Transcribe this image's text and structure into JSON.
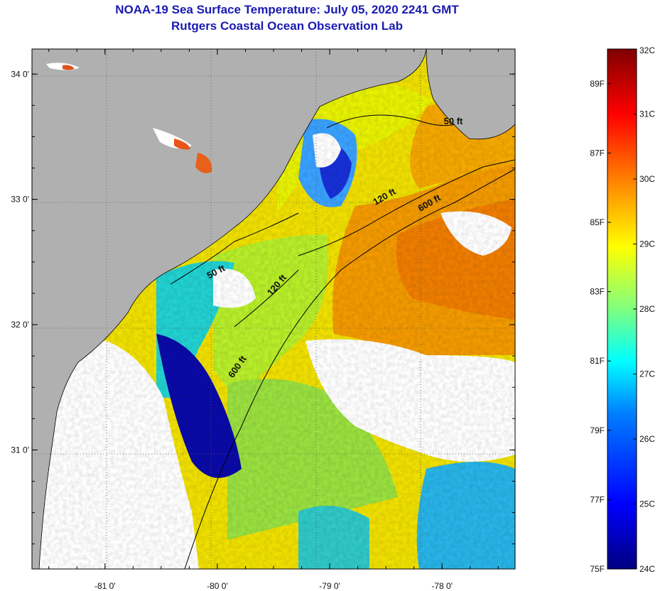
{
  "title": "NOAA-19 Sea Surface Temperature:  July 05, 2020 2241 GMT",
  "subtitle": "Rutgers Coastal Ocean Observation Lab",
  "map": {
    "lon_range": [
      -81.65,
      -77.35
    ],
    "lat_range": [
      30.05,
      34.2
    ],
    "lon_ticks": [
      {
        "value": -81,
        "label": "-81 0'"
      },
      {
        "value": -80,
        "label": "-80 0'"
      },
      {
        "value": -79,
        "label": "-79 0'"
      },
      {
        "value": -78,
        "label": "-78 0'"
      }
    ],
    "lat_ticks": [
      {
        "value": 34,
        "label": "34 0'"
      },
      {
        "value": 33,
        "label": "33 0'"
      },
      {
        "value": 32,
        "label": "32 0'"
      },
      {
        "value": 31,
        "label": "31 0'"
      }
    ],
    "land_color": "#b0b0b0",
    "cloud_color": "#ffffff",
    "isobath_labels": [
      {
        "text": "50 ft",
        "lon": -77.9,
        "lat": 33.6,
        "angle": 0
      },
      {
        "text": "120 ft",
        "lon": -78.5,
        "lat": 33.0,
        "angle": -30
      },
      {
        "text": "600 ft",
        "lon": -78.1,
        "lat": 32.95,
        "angle": -30
      },
      {
        "text": "50 ft",
        "lon": -80.0,
        "lat": 32.4,
        "angle": -28
      },
      {
        "text": "120 ft",
        "lon": -79.45,
        "lat": 32.3,
        "angle": -50
      },
      {
        "text": "600 ft",
        "lon": -79.8,
        "lat": 31.65,
        "angle": -55
      }
    ]
  },
  "colorbar": {
    "range_c": [
      24,
      32
    ],
    "range_f": [
      75,
      90
    ],
    "celsius_labels": [
      "32C",
      "31C",
      "30C",
      "29C",
      "28C",
      "27C",
      "26C",
      "25C",
      "24C"
    ],
    "fahrenheit_labels": [
      "89F",
      "87F",
      "85F",
      "83F",
      "81F",
      "79F",
      "77F",
      "75F"
    ],
    "colormap": [
      "#00007f",
      "#0000ff",
      "#007fff",
      "#00ffff",
      "#7fff7f",
      "#ffff00",
      "#ff7f00",
      "#ff0000",
      "#7f0000"
    ]
  }
}
